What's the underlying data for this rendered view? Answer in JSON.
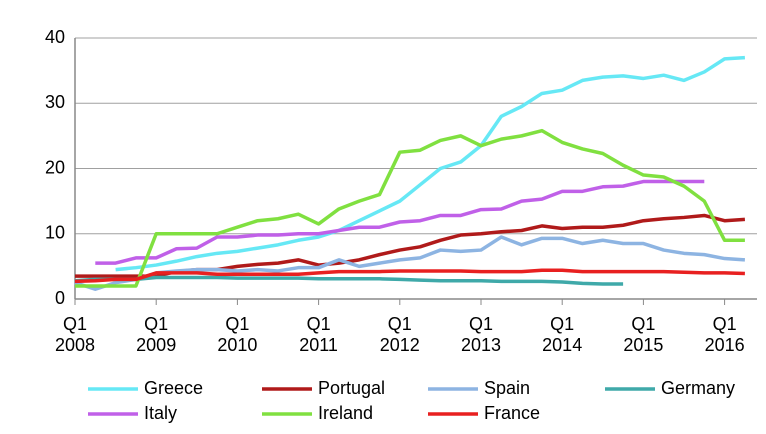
{
  "chart_data": {
    "type": "line",
    "categories": [
      "Q1 2008",
      null,
      null,
      null,
      "Q1 2009",
      null,
      null,
      null,
      "Q1 2010",
      null,
      null,
      null,
      "Q1 2011",
      null,
      null,
      null,
      "Q1 2012",
      null,
      null,
      null,
      "Q1 2013",
      null,
      null,
      null,
      "Q1 2014",
      null,
      null,
      null,
      "Q1 2015",
      null,
      null,
      null,
      "Q1 2016",
      null
    ],
    "ylim": [
      0,
      40
    ],
    "yticks": [
      0,
      10,
      20,
      30,
      40
    ],
    "grid": true,
    "series": [
      {
        "name": "Greece",
        "color": "#66e8f5",
        "values": [
          null,
          null,
          4.5,
          4.8,
          5.2,
          5.8,
          6.5,
          7,
          7.3,
          7.8,
          8.3,
          9,
          9.5,
          10.5,
          12,
          13.5,
          15,
          17.5,
          20,
          21,
          23.5,
          28,
          29.5,
          31.5,
          32,
          33.5,
          34,
          34.2,
          33.8,
          34.3,
          33.5,
          34.8,
          36.8,
          37
        ]
      },
      {
        "name": "Portugal",
        "color": "#b01a1a",
        "values": [
          3.5,
          3.5,
          3.5,
          3.5,
          3.5,
          4.2,
          4.5,
          4.5,
          5,
          5.3,
          5.5,
          6,
          5.2,
          5.5,
          6,
          6.8,
          7.5,
          8,
          9,
          9.8,
          10,
          10.3,
          10.5,
          11.2,
          10.8,
          11,
          11,
          11.3,
          12,
          12.3,
          12.5,
          12.8,
          12,
          12.2
        ]
      },
      {
        "name": "Spain",
        "color": "#8db4e2",
        "values": [
          2.5,
          1.5,
          2.5,
          3,
          4,
          4.3,
          4.5,
          4.5,
          4.3,
          4.5,
          4.3,
          4.8,
          4.8,
          6,
          5,
          5.5,
          6,
          6.3,
          7.5,
          7.3,
          7.5,
          9.5,
          8.3,
          9.3,
          9.3,
          8.5,
          9,
          8.5,
          8.5,
          7.5,
          7,
          6.8,
          6.2,
          6
        ]
      },
      {
        "name": "Germany",
        "color": "#3fa9a9",
        "values": [
          2.8,
          3,
          3,
          3,
          3.3,
          3.3,
          3.3,
          3.3,
          3.2,
          3.2,
          3.2,
          3.2,
          3.1,
          3.1,
          3.1,
          3.1,
          3,
          2.9,
          2.8,
          2.8,
          2.8,
          2.7,
          2.7,
          2.7,
          2.6,
          2.4,
          2.3,
          2.3,
          null,
          null,
          null,
          null,
          null,
          null
        ]
      },
      {
        "name": "Italy",
        "color": "#c060e8",
        "values": [
          null,
          5.5,
          5.5,
          6.3,
          6.3,
          7.7,
          7.8,
          9.5,
          9.5,
          9.8,
          9.8,
          10,
          10,
          10.5,
          11,
          11,
          11.8,
          12,
          12.8,
          12.8,
          13.7,
          13.8,
          15,
          15.3,
          16.5,
          16.5,
          17.2,
          17.3,
          18,
          18,
          18,
          18,
          null,
          null
        ]
      },
      {
        "name": "Ireland",
        "color": "#80e040",
        "values": [
          2,
          2,
          2,
          2,
          10,
          10,
          10,
          10,
          11,
          12,
          12.3,
          13,
          11.5,
          13.8,
          15,
          16,
          22.5,
          22.8,
          24.3,
          25,
          23.5,
          24.5,
          25,
          25.8,
          24,
          23,
          22.3,
          20.5,
          19,
          18.7,
          17.3,
          15,
          9,
          9
        ]
      },
      {
        "name": "France",
        "color": "#e82020",
        "values": [
          2.7,
          2.8,
          3,
          3,
          4,
          4,
          4,
          3.8,
          3.8,
          3.8,
          3.8,
          3.8,
          4,
          4.2,
          4.2,
          4.2,
          4.3,
          4.3,
          4.3,
          4.3,
          4.2,
          4.2,
          4.2,
          4.4,
          4.4,
          4.2,
          4.2,
          4.2,
          4.2,
          4.2,
          4.1,
          4,
          4,
          3.9
        ]
      }
    ]
  }
}
